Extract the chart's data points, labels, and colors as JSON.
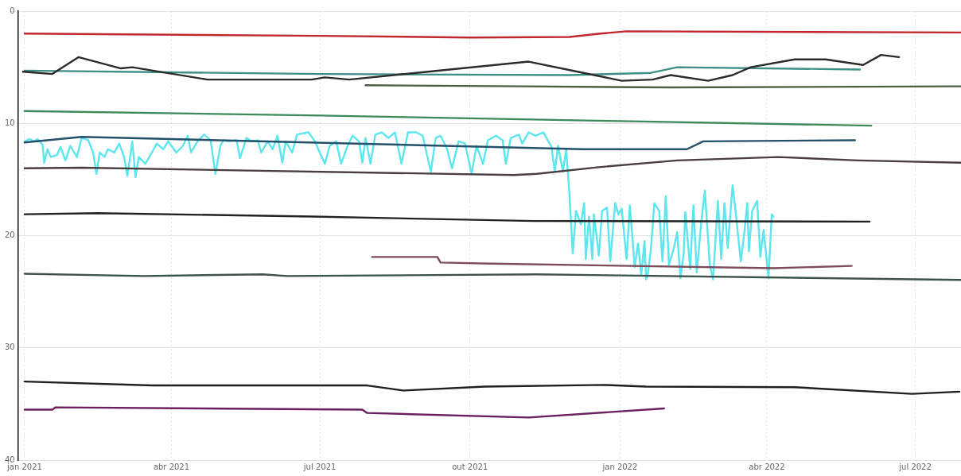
{
  "chart_data": {
    "type": "line",
    "xlim": [
      "2020-12-28",
      "2022-07-29"
    ],
    "xticks": [
      {
        "value": "2021-01-01",
        "label": "jan 2021"
      },
      {
        "value": "2021-04-01",
        "label": "abr 2021"
      },
      {
        "value": "2021-07-01",
        "label": "jul 2021"
      },
      {
        "value": "2021-10-01",
        "label": "out 2021"
      },
      {
        "value": "2022-01-01",
        "label": "jan 2022"
      },
      {
        "value": "2022-04-01",
        "label": "abr 2022"
      },
      {
        "value": "2022-07-01",
        "label": "jul 2022"
      }
    ],
    "ylim": [
      40,
      0
    ],
    "yticks": [
      0,
      10,
      20,
      30,
      40
    ],
    "grid": true,
    "legend": false,
    "line_style": "solid",
    "series": [
      {
        "color": "#c0282d",
        "x": [
          "2021-01-01",
          "2021-07-01",
          "2021-10-01",
          "2021-12-01",
          "2021-12-20",
          "2022-01-05",
          "2022-07-29"
        ],
        "values": [
          2.0,
          2.2,
          2.35,
          2.3,
          2.0,
          1.8,
          1.9
        ]
      },
      {
        "color": "#2b2b2b",
        "x": [
          "2020-12-31",
          "2021-01-18",
          "2021-02-03",
          "2021-03-01",
          "2021-03-08",
          "2021-04-23",
          "2021-06-26",
          "2021-07-04",
          "2021-07-19",
          "2021-11-06",
          "2021-12-06",
          "2022-01-02",
          "2022-01-21",
          "2022-02-01",
          "2022-02-24",
          "2022-03-11",
          "2022-03-22",
          "2022-04-18",
          "2022-05-07",
          "2022-05-30",
          "2022-06-10",
          "2022-06-21"
        ],
        "values": [
          5.4,
          5.6,
          4.1,
          5.1,
          5.0,
          6.1,
          6.1,
          5.9,
          6.1,
          4.5,
          5.4,
          6.2,
          6.1,
          5.7,
          6.2,
          5.7,
          5.0,
          4.3,
          4.3,
          4.8,
          3.9,
          4.1
        ]
      },
      {
        "color": "#3f8f87",
        "x": [
          "2021-01-01",
          "2021-07-01",
          "2021-12-01",
          "2022-01-20",
          "2022-02-05",
          "2022-05-28"
        ],
        "values": [
          5.3,
          5.6,
          5.7,
          5.5,
          5.0,
          5.2
        ]
      },
      {
        "color": "#4e5e45",
        "x": [
          "2021-07-29",
          "2021-11-01",
          "2022-02-01",
          "2022-07-29"
        ],
        "values": [
          6.6,
          6.7,
          6.8,
          6.7
        ]
      },
      {
        "color": "#3c8a5a",
        "x": [
          "2021-01-01",
          "2021-07-01",
          "2022-01-01",
          "2022-06-04"
        ],
        "values": [
          8.9,
          9.3,
          9.8,
          10.2
        ]
      },
      {
        "color": "#24506a",
        "x": [
          "2021-01-01",
          "2021-02-05",
          "2021-12-09",
          "2022-02-11",
          "2022-02-21",
          "2022-05-25"
        ],
        "values": [
          11.7,
          11.2,
          12.3,
          12.3,
          11.6,
          11.5
        ]
      },
      {
        "color": "#4a3f3f",
        "x": [
          "2021-01-01",
          "2021-02-05",
          "2021-10-28",
          "2021-11-11",
          "2021-12-19",
          "2022-02-05",
          "2022-04-08",
          "2022-05-27",
          "2022-07-29"
        ],
        "values": [
          14.0,
          13.95,
          14.6,
          14.5,
          13.9,
          13.3,
          13.0,
          13.3,
          13.5
        ]
      },
      {
        "color": "#222222",
        "x": [
          "2021-01-01",
          "2021-02-15",
          "2021-06-26",
          "2021-11-09",
          "2022-06-03"
        ],
        "values": [
          18.1,
          18.0,
          18.3,
          18.7,
          18.75
        ]
      },
      {
        "color": "#7d4b5a",
        "x": [
          "2021-08-02",
          "2021-09-11",
          "2021-09-13",
          "2021-10-14",
          "2022-04-05",
          "2022-05-23"
        ],
        "values": [
          21.9,
          21.9,
          22.4,
          22.5,
          22.9,
          22.7
        ]
      },
      {
        "color": "#3f514c",
        "x": [
          "2021-01-01",
          "2021-03-15",
          "2021-05-27",
          "2021-06-11",
          "2021-11-11",
          "2022-07-29"
        ],
        "values": [
          23.4,
          23.6,
          23.45,
          23.6,
          23.45,
          23.95
        ]
      },
      {
        "color": "#1f1f1f",
        "x": [
          "2021-01-01",
          "2021-03-20",
          "2021-07-30",
          "2021-08-21",
          "2021-10-10",
          "2021-12-22",
          "2022-01-17",
          "2022-04-18",
          "2022-06-29",
          "2022-07-28"
        ],
        "values": [
          33.0,
          33.35,
          33.35,
          33.8,
          33.45,
          33.3,
          33.45,
          33.5,
          34.1,
          33.9
        ]
      },
      {
        "color": "#6b1f5e",
        "x": [
          "2021-01-01",
          "2021-01-18",
          "2021-01-20",
          "2021-07-27",
          "2021-07-30",
          "2021-11-06",
          "2022-01-28"
        ],
        "values": [
          35.5,
          35.5,
          35.3,
          35.5,
          35.8,
          36.2,
          35.4
        ]
      },
      {
        "color": "#5ce6ee",
        "x": [
          "2021-01-01",
          "2021-01-04",
          "2021-01-07",
          "2021-01-09",
          "2021-01-12",
          "2021-01-13",
          "2021-01-15",
          "2021-01-17",
          "2021-01-21",
          "2021-01-23",
          "2021-01-26",
          "2021-01-29",
          "2021-02-02",
          "2021-02-05",
          "2021-02-09",
          "2021-02-12",
          "2021-02-14",
          "2021-02-16",
          "2021-02-19",
          "2021-02-21",
          "2021-02-25",
          "2021-02-28",
          "2021-03-03",
          "2021-03-05",
          "2021-03-08",
          "2021-03-10",
          "2021-03-12",
          "2021-03-16",
          "2021-03-20",
          "2021-03-23",
          "2021-03-27",
          "2021-03-30",
          "2021-04-04",
          "2021-04-08",
          "2021-04-11",
          "2021-04-13",
          "2021-04-17",
          "2021-04-21",
          "2021-04-25",
          "2021-04-28",
          "2021-05-01",
          "2021-05-03",
          "2021-05-06",
          "2021-05-11",
          "2021-05-13",
          "2021-05-17",
          "2021-05-20",
          "2021-05-24",
          "2021-05-26",
          "2021-05-30",
          "2021-06-02",
          "2021-06-05",
          "2021-06-08",
          "2021-06-10",
          "2021-06-14",
          "2021-06-17",
          "2021-06-24",
          "2021-06-28",
          "2021-06-30",
          "2021-07-04",
          "2021-07-07",
          "2021-07-11",
          "2021-07-14",
          "2021-07-18",
          "2021-07-21",
          "2021-07-25",
          "2021-07-27",
          "2021-07-29",
          "2021-08-01",
          "2021-08-04",
          "2021-08-08",
          "2021-08-12",
          "2021-08-16",
          "2021-08-20",
          "2021-08-24",
          "2021-08-29",
          "2021-09-02",
          "2021-09-07",
          "2021-09-10",
          "2021-09-13",
          "2021-09-17",
          "2021-09-20",
          "2021-09-24",
          "2021-09-28",
          "2021-10-02",
          "2021-10-05",
          "2021-10-09",
          "2021-10-12",
          "2021-10-17",
          "2021-10-21",
          "2021-10-23",
          "2021-10-26",
          "2021-10-31",
          "2021-11-02",
          "2021-11-06",
          "2021-11-10",
          "2021-11-15",
          "2021-11-20",
          "2021-11-22",
          "2021-11-24",
          "2021-11-27",
          "2021-11-29",
          "2021-12-01",
          "2021-12-03",
          "2021-12-05",
          "2021-12-08",
          "2021-12-10",
          "2021-12-11",
          "2021-12-13",
          "2021-12-15",
          "2021-12-16",
          "2021-12-19",
          "2021-12-21",
          "2021-12-24",
          "2021-12-26",
          "2021-12-29",
          "2021-12-31",
          "2022-01-02",
          "2022-01-05",
          "2022-01-07",
          "2022-01-10",
          "2022-01-12",
          "2022-01-14",
          "2022-01-16",
          "2022-01-17",
          "2022-01-18",
          "2022-01-20",
          "2022-01-22",
          "2022-01-25",
          "2022-01-27",
          "2022-01-29",
          "2022-01-31",
          "2022-02-03",
          "2022-02-05",
          "2022-02-07",
          "2022-02-09",
          "2022-02-10",
          "2022-02-13",
          "2022-02-15",
          "2022-02-17",
          "2022-02-20",
          "2022-02-22",
          "2022-02-25",
          "2022-02-27",
          "2022-03-02",
          "2022-03-04",
          "2022-03-06",
          "2022-03-08",
          "2022-03-11",
          "2022-03-13",
          "2022-03-16",
          "2022-03-18",
          "2022-03-20",
          "2022-03-21",
          "2022-03-23",
          "2022-03-26",
          "2022-03-28",
          "2022-03-30",
          "2022-04-02",
          "2022-04-04",
          "2022-04-05"
        ],
        "values": [
          11.6,
          11.4,
          11.6,
          11.4,
          11.9,
          13.5,
          12.3,
          13.0,
          12.8,
          12.1,
          13.3,
          12.0,
          13.0,
          11.3,
          11.5,
          12.6,
          14.5,
          12.6,
          13.0,
          12.3,
          12.6,
          11.8,
          13.0,
          14.7,
          11.6,
          14.8,
          13.0,
          13.6,
          12.6,
          11.8,
          12.3,
          11.6,
          12.6,
          12.0,
          11.1,
          12.6,
          11.6,
          11.0,
          11.5,
          14.5,
          12.0,
          11.5,
          11.6,
          11.5,
          13.1,
          11.3,
          11.6,
          11.5,
          12.6,
          11.6,
          12.3,
          11.1,
          13.5,
          11.6,
          12.6,
          11.0,
          10.8,
          11.6,
          12.3,
          13.6,
          12.0,
          11.6,
          13.6,
          12.0,
          11.1,
          11.6,
          13.5,
          11.3,
          13.6,
          11.0,
          10.8,
          11.3,
          10.8,
          13.6,
          10.8,
          10.8,
          11.1,
          14.3,
          11.3,
          11.1,
          12.3,
          14.0,
          11.6,
          11.8,
          14.5,
          12.0,
          13.6,
          11.5,
          11.1,
          11.5,
          13.6,
          11.3,
          11.0,
          11.8,
          10.8,
          11.1,
          10.8,
          12.1,
          14.3,
          12.0,
          14.3,
          12.3,
          16.4,
          21.6,
          17.8,
          19.0,
          17.1,
          22.1,
          18.3,
          22.1,
          18.1,
          21.8,
          17.8,
          17.5,
          22.3,
          17.1,
          18.1,
          17.6,
          22.1,
          17.3,
          22.8,
          20.7,
          23.5,
          20.5,
          23.9,
          23.5,
          21.1,
          17.1,
          17.8,
          22.3,
          16.5,
          22.6,
          21.1,
          19.7,
          23.8,
          21.6,
          17.9,
          23.0,
          17.3,
          23.3,
          18.5,
          16.0,
          22.6,
          23.9,
          16.9,
          22.1,
          17.1,
          21.1,
          15.5,
          18.1,
          22.3,
          20.0,
          17.1,
          21.4,
          17.8,
          16.9,
          21.9,
          19.5,
          23.8,
          18.1,
          18.3
        ]
      }
    ]
  }
}
